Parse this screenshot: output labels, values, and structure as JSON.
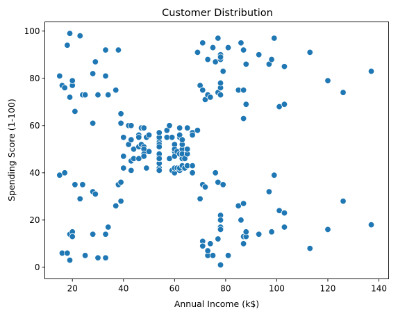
{
  "chart_data": {
    "type": "scatter",
    "title": "Customer Distribution",
    "xlabel": "Annual Income (k$)",
    "ylabel": "Spending Score (1-100)",
    "xlim": [
      9.2,
      143.8
    ],
    "ylim": [
      -4.9,
      103.9
    ],
    "xticks": [
      20,
      40,
      60,
      80,
      100,
      120,
      140
    ],
    "yticks": [
      0,
      20,
      40,
      60,
      80,
      100
    ],
    "grid": false,
    "marker_color": "#1f77b4",
    "marker_edge_color": "#ffffff",
    "points": [
      [
        15,
        39
      ],
      [
        15,
        81
      ],
      [
        16,
        6
      ],
      [
        16,
        77
      ],
      [
        17,
        40
      ],
      [
        17,
        76
      ],
      [
        18,
        6
      ],
      [
        18,
        94
      ],
      [
        19,
        3
      ],
      [
        19,
        72
      ],
      [
        19,
        14
      ],
      [
        19,
        99
      ],
      [
        20,
        15
      ],
      [
        20,
        77
      ],
      [
        20,
        13
      ],
      [
        20,
        79
      ],
      [
        21,
        35
      ],
      [
        21,
        66
      ],
      [
        23,
        29
      ],
      [
        23,
        98
      ],
      [
        24,
        35
      ],
      [
        24,
        73
      ],
      [
        25,
        5
      ],
      [
        25,
        73
      ],
      [
        28,
        14
      ],
      [
        28,
        82
      ],
      [
        28,
        32
      ],
      [
        28,
        61
      ],
      [
        29,
        31
      ],
      [
        29,
        87
      ],
      [
        30,
        4
      ],
      [
        30,
        73
      ],
      [
        33,
        4
      ],
      [
        33,
        92
      ],
      [
        33,
        14
      ],
      [
        33,
        81
      ],
      [
        34,
        17
      ],
      [
        34,
        73
      ],
      [
        37,
        26
      ],
      [
        37,
        75
      ],
      [
        38,
        35
      ],
      [
        38,
        92
      ],
      [
        39,
        36
      ],
      [
        39,
        61
      ],
      [
        39,
        28
      ],
      [
        39,
        65
      ],
      [
        40,
        55
      ],
      [
        40,
        47
      ],
      [
        40,
        42
      ],
      [
        40,
        42
      ],
      [
        42,
        52
      ],
      [
        42,
        60
      ],
      [
        43,
        54
      ],
      [
        43,
        60
      ],
      [
        43,
        45
      ],
      [
        43,
        41
      ],
      [
        44,
        50
      ],
      [
        44,
        46
      ],
      [
        46,
        51
      ],
      [
        46,
        46
      ],
      [
        46,
        56
      ],
      [
        46,
        55
      ],
      [
        47,
        52
      ],
      [
        47,
        59
      ],
      [
        48,
        51
      ],
      [
        48,
        59
      ],
      [
        48,
        50
      ],
      [
        48,
        48
      ],
      [
        48,
        59
      ],
      [
        48,
        47
      ],
      [
        49,
        55
      ],
      [
        49,
        42
      ],
      [
        50,
        49
      ],
      [
        50,
        56
      ],
      [
        54,
        47
      ],
      [
        54,
        54
      ],
      [
        54,
        53
      ],
      [
        54,
        48
      ],
      [
        54,
        52
      ],
      [
        54,
        42
      ],
      [
        54,
        51
      ],
      [
        54,
        55
      ],
      [
        54,
        41
      ],
      [
        54,
        44
      ],
      [
        54,
        57
      ],
      [
        54,
        46
      ],
      [
        57,
        58
      ],
      [
        57,
        55
      ],
      [
        58,
        60
      ],
      [
        58,
        46
      ],
      [
        59,
        55
      ],
      [
        59,
        41
      ],
      [
        60,
        49
      ],
      [
        60,
        40
      ],
      [
        60,
        42
      ],
      [
        60,
        52
      ],
      [
        60,
        47
      ],
      [
        60,
        50
      ],
      [
        61,
        42
      ],
      [
        61,
        49
      ],
      [
        62,
        41
      ],
      [
        62,
        48
      ],
      [
        62,
        59
      ],
      [
        62,
        55
      ],
      [
        62,
        56
      ],
      [
        62,
        42
      ],
      [
        63,
        50
      ],
      [
        63,
        46
      ],
      [
        63,
        43
      ],
      [
        63,
        48
      ],
      [
        63,
        52
      ],
      [
        63,
        54
      ],
      [
        64,
        42
      ],
      [
        64,
        46
      ],
      [
        65,
        48
      ],
      [
        65,
        50
      ],
      [
        65,
        43
      ],
      [
        65,
        59
      ],
      [
        67,
        43
      ],
      [
        67,
        57
      ],
      [
        67,
        56
      ],
      [
        67,
        40
      ],
      [
        69,
        58
      ],
      [
        69,
        91
      ],
      [
        70,
        29
      ],
      [
        70,
        77
      ],
      [
        71,
        35
      ],
      [
        71,
        95
      ],
      [
        71,
        11
      ],
      [
        71,
        75
      ],
      [
        71,
        9
      ],
      [
        71,
        75
      ],
      [
        72,
        34
      ],
      [
        72,
        71
      ],
      [
        73,
        5
      ],
      [
        73,
        88
      ],
      [
        73,
        7
      ],
      [
        73,
        73
      ],
      [
        74,
        10
      ],
      [
        74,
        72
      ],
      [
        75,
        5
      ],
      [
        75,
        93
      ],
      [
        76,
        40
      ],
      [
        76,
        87
      ],
      [
        77,
        12
      ],
      [
        77,
        97
      ],
      [
        77,
        36
      ],
      [
        77,
        74
      ],
      [
        78,
        22
      ],
      [
        78,
        90
      ],
      [
        78,
        17
      ],
      [
        78,
        88
      ],
      [
        78,
        20
      ],
      [
        78,
        76
      ],
      [
        78,
        16
      ],
      [
        78,
        89
      ],
      [
        78,
        1
      ],
      [
        78,
        78
      ],
      [
        78,
        1
      ],
      [
        78,
        73
      ],
      [
        79,
        35
      ],
      [
        79,
        83
      ],
      [
        81,
        5
      ],
      [
        81,
        93
      ],
      [
        85,
        26
      ],
      [
        85,
        75
      ],
      [
        86,
        20
      ],
      [
        86,
        95
      ],
      [
        87,
        27
      ],
      [
        87,
        63
      ],
      [
        87,
        13
      ],
      [
        87,
        75
      ],
      [
        87,
        10
      ],
      [
        87,
        92
      ],
      [
        88,
        13
      ],
      [
        88,
        86
      ],
      [
        88,
        15
      ],
      [
        88,
        69
      ],
      [
        93,
        14
      ],
      [
        93,
        90
      ],
      [
        97,
        32
      ],
      [
        97,
        86
      ],
      [
        98,
        15
      ],
      [
        98,
        88
      ],
      [
        99,
        39
      ],
      [
        99,
        97
      ],
      [
        101,
        24
      ],
      [
        101,
        68
      ],
      [
        103,
        17
      ],
      [
        103,
        85
      ],
      [
        103,
        23
      ],
      [
        103,
        69
      ],
      [
        113,
        8
      ],
      [
        113,
        91
      ],
      [
        120,
        16
      ],
      [
        120,
        79
      ],
      [
        126,
        28
      ],
      [
        126,
        74
      ],
      [
        137,
        18
      ],
      [
        137,
        83
      ]
    ]
  }
}
